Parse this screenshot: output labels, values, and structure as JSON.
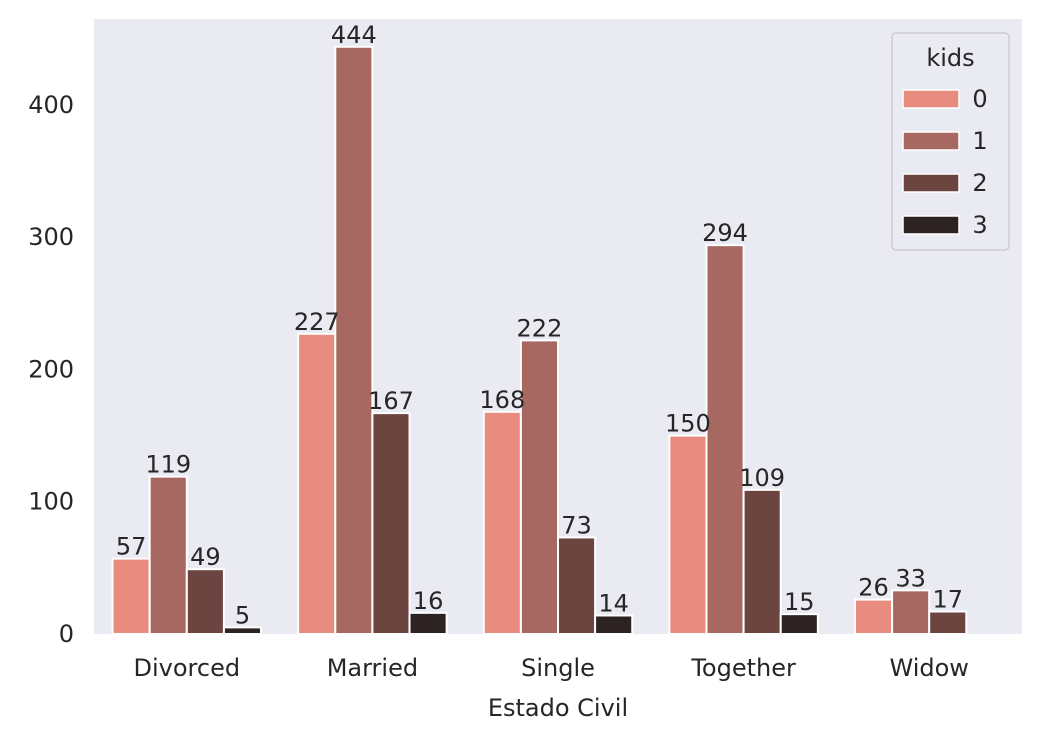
{
  "chart_data": {
    "type": "bar",
    "xlabel": "Estado Civil",
    "ylabel": "",
    "categories": [
      "Divorced",
      "Married",
      "Single",
      "Together",
      "Widow"
    ],
    "series": [
      {
        "name": "0",
        "color": "#e88c7f",
        "values": [
          57,
          227,
          168,
          150,
          26
        ]
      },
      {
        "name": "1",
        "color": "#a86862",
        "values": [
          119,
          444,
          222,
          294,
          33
        ]
      },
      {
        "name": "2",
        "color": "#6c4541",
        "values": [
          49,
          167,
          73,
          109,
          17
        ]
      },
      {
        "name": "3",
        "color": "#2c2322",
        "values": [
          5,
          16,
          14,
          15,
          null
        ]
      }
    ],
    "ylim": [
      0,
      465
    ],
    "yticks": [
      0,
      100,
      200,
      300,
      400
    ],
    "legend": {
      "title": "kids",
      "position": "top-right"
    },
    "grid": false,
    "background": "#eaeaf2"
  }
}
